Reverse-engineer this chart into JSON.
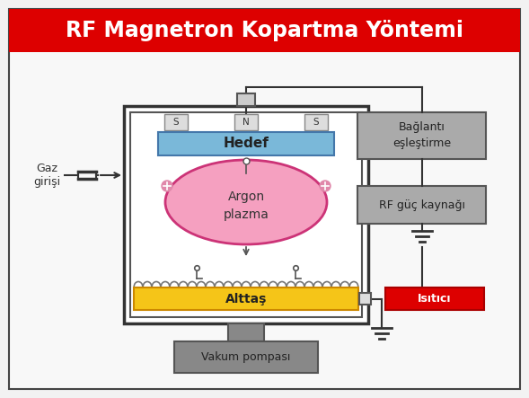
{
  "title": "RF Magnetron Kopartma Yöntemi",
  "title_color": "#ffffff",
  "title_bg": "#dd0000",
  "bg_color": "#f2f2f2",
  "chamber_border": "#333333",
  "hedef_color": "#7ab8d9",
  "hedef_label": "Hedef",
  "plasma_color": "#f5a0c0",
  "plasma_label": "Argon\nplazma",
  "alttash_color": "#f5c518",
  "alttash_label": "Alttaş",
  "isitici_color": "#dd0000",
  "isitici_label": "Isıtıcı",
  "vakum_color": "#888888",
  "vakum_label": "Vakum pompası",
  "baglanti_color": "#aaaaaa",
  "baglanti_label": "Bağlantı\neşleştirme",
  "rf_color": "#aaaaaa",
  "rf_label": "RF güç kaynağı",
  "gaz_label": "Gaz\ngirişi"
}
